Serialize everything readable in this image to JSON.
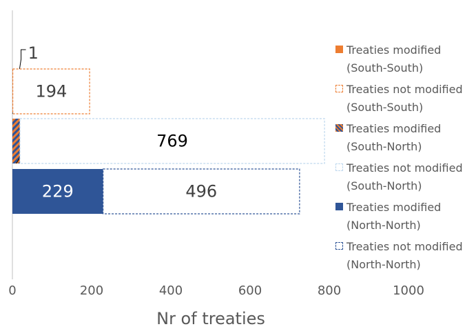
{
  "chart_data": {
    "type": "stacked-hbar",
    "xlabel": "Nr of treaties",
    "categories": [
      null,
      null,
      null
    ],
    "series": [
      {
        "name": "Treaties modified (South-South)",
        "color": "#ed7d31",
        "style": "solid",
        "values": [
          1,
          null,
          null
        ]
      },
      {
        "name": "Treaties not modified (South-South)",
        "color": "#ed7d31",
        "style": "dashed",
        "values": [
          194,
          null,
          null
        ]
      },
      {
        "name": "Treaties modified (South-North)",
        "color": "#ed7d31",
        "hatch_color": "#2f5597",
        "style": "hatched",
        "values": [
          null,
          19,
          null
        ]
      },
      {
        "name": "Treaties not modified (South-North)",
        "color": "#bdd7ee",
        "style": "dashed",
        "values": [
          null,
          769,
          null
        ]
      },
      {
        "name": "Treaties modified (North-North)",
        "color": "#2f5597",
        "style": "solid",
        "values": [
          null,
          null,
          229
        ]
      },
      {
        "name": "Treaties not modified (North-North)",
        "color": "#2f5597",
        "style": "dashed",
        "values": [
          null,
          null,
          496
        ]
      }
    ],
    "xlim": [
      0,
      1000
    ],
    "xticks": [
      0,
      200,
      400,
      600,
      800,
      1000
    ],
    "legend": "right"
  }
}
